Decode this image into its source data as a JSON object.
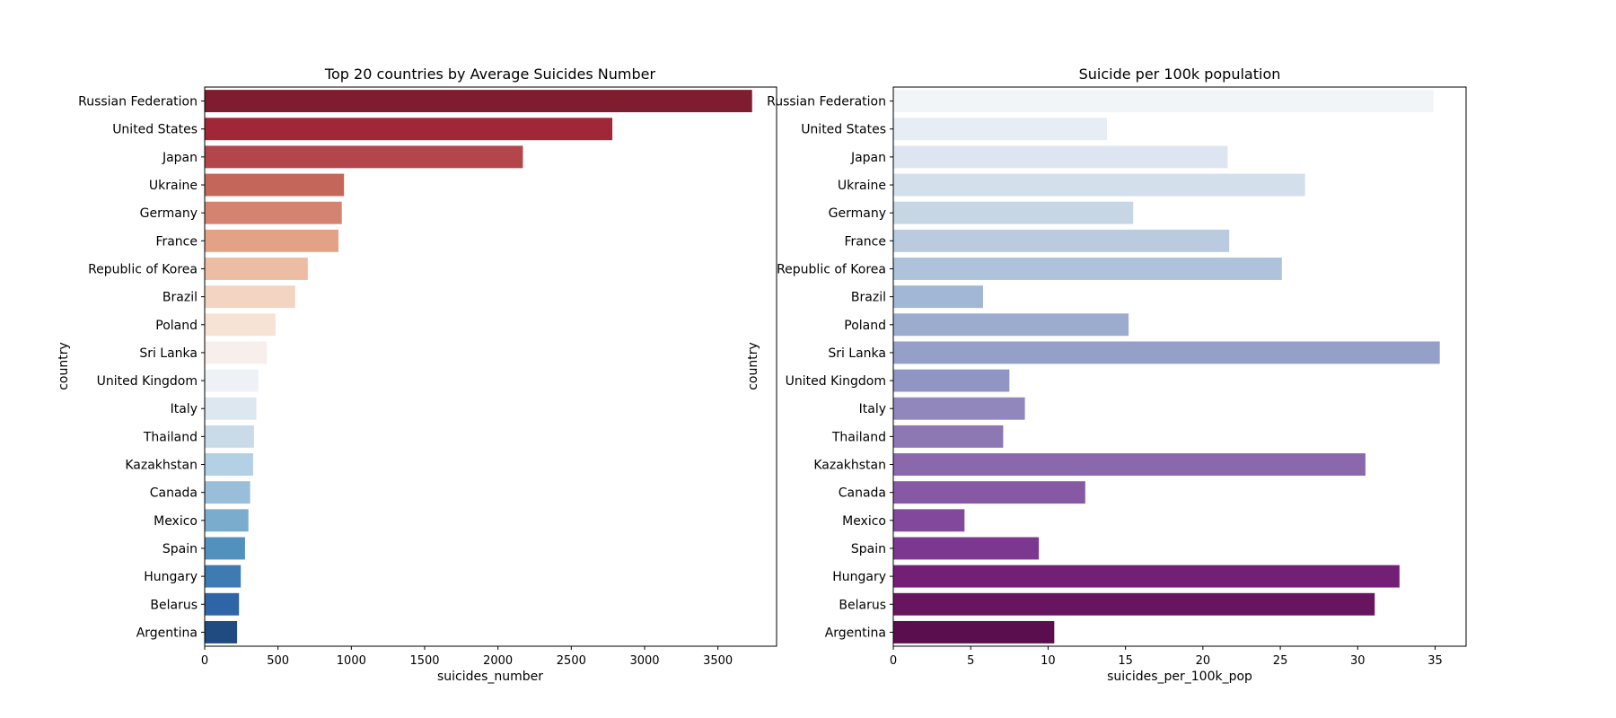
{
  "chart_data": [
    {
      "type": "bar",
      "orientation": "horizontal",
      "title": "Top 20 countries by Average Suicides Number",
      "xlabel": "suicides_number",
      "ylabel": "country",
      "xlim": [
        0,
        3900
      ],
      "xticks": [
        0,
        500,
        1000,
        1500,
        2000,
        2500,
        3000,
        3500
      ],
      "grid": false,
      "categories": [
        "Russian Federation",
        "United States",
        "Japan",
        "Ukraine",
        "Germany",
        "France",
        "Republic of Korea",
        "Brazil",
        "Poland",
        "Sri Lanka",
        "United Kingdom",
        "Italy",
        "Thailand",
        "Kazakhstan",
        "Canada",
        "Mexico",
        "Spain",
        "Hungary",
        "Belarus",
        "Argentina"
      ],
      "values": [
        3733,
        2780,
        2170,
        950,
        935,
        912,
        703,
        617,
        483,
        424,
        366,
        352,
        336,
        330,
        310,
        298,
        275,
        246,
        234,
        221
      ],
      "colors": [
        "#7f1d2e",
        "#a12738",
        "#b2464a",
        "#c4665a",
        "#d48371",
        "#e3a186",
        "#ecbca3",
        "#f3d3c1",
        "#f7e2d6",
        "#f8efed",
        "#eef1f5",
        "#dde7f0",
        "#c9dbe9",
        "#b4d0e4",
        "#99bed9",
        "#7aaccd",
        "#5290be",
        "#3e7bb2",
        "#2e65a7",
        "#1f4b80"
      ]
    },
    {
      "type": "bar",
      "orientation": "horizontal",
      "title": "Suicide per 100k population",
      "xlabel": "suicides_per_100k_pop",
      "ylabel": "country",
      "xlim": [
        0,
        37
      ],
      "xticks": [
        0,
        5,
        10,
        15,
        20,
        25,
        30,
        35
      ],
      "grid": false,
      "categories": [
        "Russian Federation",
        "United States",
        "Japan",
        "Ukraine",
        "Germany",
        "France",
        "Republic of Korea",
        "Brazil",
        "Poland",
        "Sri Lanka",
        "United Kingdom",
        "Italy",
        "Thailand",
        "Kazakhstan",
        "Canada",
        "Mexico",
        "Spain",
        "Hungary",
        "Belarus",
        "Argentina"
      ],
      "values": [
        34.9,
        13.8,
        21.6,
        26.6,
        15.5,
        21.7,
        25.1,
        5.8,
        15.2,
        35.3,
        7.5,
        8.5,
        7.1,
        30.5,
        12.4,
        4.6,
        9.4,
        32.7,
        31.1,
        10.4
      ],
      "colors": [
        "#f1f5f8",
        "#e6edf4",
        "#dde6f0",
        "#d3dfea",
        "#c7d6e5",
        "#bacbe0",
        "#adc3dc",
        "#a2b7d6",
        "#9cacce",
        "#95a0c8",
        "#9195c3",
        "#9187bc",
        "#8d78b4",
        "#8b67ac",
        "#8759a5",
        "#81489b",
        "#7c3790",
        "#731f76",
        "#67155f",
        "#5a0e4e"
      ]
    }
  ]
}
